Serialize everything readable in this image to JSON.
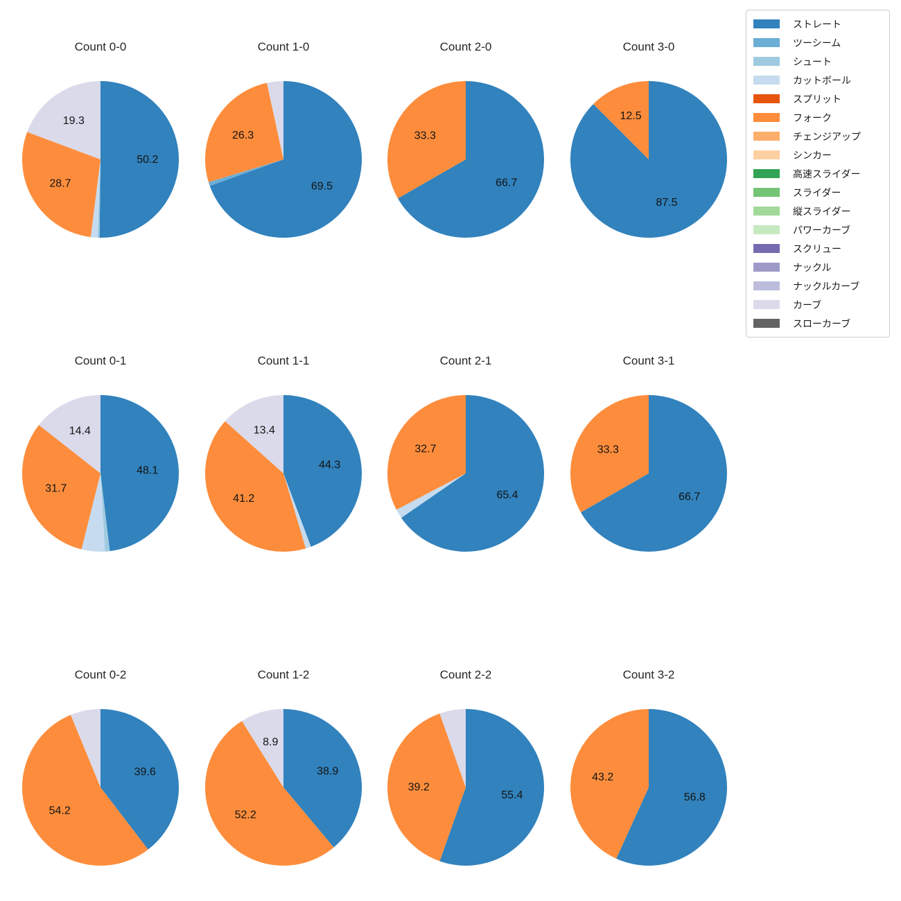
{
  "legend": {
    "items": [
      {
        "label": "ストレート",
        "color": "#3182bd"
      },
      {
        "label": "ツーシーム",
        "color": "#6baed6"
      },
      {
        "label": "シュート",
        "color": "#9ecae1"
      },
      {
        "label": "カットボール",
        "color": "#c6dbef"
      },
      {
        "label": "スプリット",
        "color": "#e6550d"
      },
      {
        "label": "フォーク",
        "color": "#fd8d3c"
      },
      {
        "label": "チェンジアップ",
        "color": "#fdae6b"
      },
      {
        "label": "シンカー",
        "color": "#fdd0a2"
      },
      {
        "label": "高速スライダー",
        "color": "#31a354"
      },
      {
        "label": "スライダー",
        "color": "#74c476"
      },
      {
        "label": "縦スライダー",
        "color": "#a1d99b"
      },
      {
        "label": "パワーカーブ",
        "color": "#c7e9c0"
      },
      {
        "label": "スクリュー",
        "color": "#756bb1"
      },
      {
        "label": "ナックル",
        "color": "#9e9ac8"
      },
      {
        "label": "ナックルカーブ",
        "color": "#bcbddc"
      },
      {
        "label": "カーブ",
        "color": "#dadaeb"
      },
      {
        "label": "スローカーブ",
        "color": "#636363"
      }
    ]
  },
  "chart_data": [
    {
      "type": "pie",
      "title": "Count 0-0",
      "start_angle_deg": 90,
      "clockwise": true,
      "slices": [
        {
          "name": "ストレート",
          "value": 50.2,
          "label": "50.2"
        },
        {
          "name": "シュート",
          "value": 0.4,
          "label": ""
        },
        {
          "name": "カットボール",
          "value": 1.4,
          "label": ""
        },
        {
          "name": "フォーク",
          "value": 28.7,
          "label": "28.7"
        },
        {
          "name": "カーブ",
          "value": 19.3,
          "label": "19.3"
        }
      ]
    },
    {
      "type": "pie",
      "title": "Count 1-0",
      "start_angle_deg": 90,
      "clockwise": true,
      "slices": [
        {
          "name": "ストレート",
          "value": 69.5,
          "label": "69.5"
        },
        {
          "name": "ツーシーム",
          "value": 0.8,
          "label": ""
        },
        {
          "name": "フォーク",
          "value": 26.3,
          "label": "26.3"
        },
        {
          "name": "カーブ",
          "value": 3.4,
          "label": ""
        }
      ]
    },
    {
      "type": "pie",
      "title": "Count 2-0",
      "start_angle_deg": 90,
      "clockwise": true,
      "slices": [
        {
          "name": "ストレート",
          "value": 66.7,
          "label": "66.7"
        },
        {
          "name": "フォーク",
          "value": 33.3,
          "label": "33.3"
        }
      ]
    },
    {
      "type": "pie",
      "title": "Count 3-0",
      "start_angle_deg": 90,
      "clockwise": true,
      "slices": [
        {
          "name": "ストレート",
          "value": 87.5,
          "label": "87.5"
        },
        {
          "name": "フォーク",
          "value": 12.5,
          "label": "12.5"
        }
      ]
    },
    {
      "type": "pie",
      "title": "Count 0-1",
      "start_angle_deg": 90,
      "clockwise": true,
      "slices": [
        {
          "name": "ストレート",
          "value": 48.1,
          "label": "48.1"
        },
        {
          "name": "シュート",
          "value": 1.0,
          "label": ""
        },
        {
          "name": "カットボール",
          "value": 4.8,
          "label": ""
        },
        {
          "name": "フォーク",
          "value": 31.7,
          "label": "31.7"
        },
        {
          "name": "カーブ",
          "value": 14.4,
          "label": "14.4"
        }
      ]
    },
    {
      "type": "pie",
      "title": "Count 1-1",
      "start_angle_deg": 90,
      "clockwise": true,
      "slices": [
        {
          "name": "ストレート",
          "value": 44.3,
          "label": "44.3"
        },
        {
          "name": "カットボール",
          "value": 1.1,
          "label": ""
        },
        {
          "name": "フォーク",
          "value": 41.2,
          "label": "41.2"
        },
        {
          "name": "カーブ",
          "value": 13.4,
          "label": "13.4"
        }
      ]
    },
    {
      "type": "pie",
      "title": "Count 2-1",
      "start_angle_deg": 90,
      "clockwise": true,
      "slices": [
        {
          "name": "ストレート",
          "value": 65.4,
          "label": "65.4"
        },
        {
          "name": "カットボール",
          "value": 1.9,
          "label": ""
        },
        {
          "name": "フォーク",
          "value": 32.7,
          "label": "32.7"
        }
      ]
    },
    {
      "type": "pie",
      "title": "Count 3-1",
      "start_angle_deg": 90,
      "clockwise": true,
      "slices": [
        {
          "name": "ストレート",
          "value": 66.7,
          "label": "66.7"
        },
        {
          "name": "フォーク",
          "value": 33.3,
          "label": "33.3"
        }
      ]
    },
    {
      "type": "pie",
      "title": "Count 0-2",
      "start_angle_deg": 90,
      "clockwise": true,
      "slices": [
        {
          "name": "ストレート",
          "value": 39.6,
          "label": "39.6"
        },
        {
          "name": "フォーク",
          "value": 54.2,
          "label": "54.2"
        },
        {
          "name": "カーブ",
          "value": 6.2,
          "label": ""
        }
      ]
    },
    {
      "type": "pie",
      "title": "Count 1-2",
      "start_angle_deg": 90,
      "clockwise": true,
      "slices": [
        {
          "name": "ストレート",
          "value": 38.9,
          "label": "38.9"
        },
        {
          "name": "フォーク",
          "value": 52.2,
          "label": "52.2"
        },
        {
          "name": "カーブ",
          "value": 8.9,
          "label": "8.9"
        }
      ]
    },
    {
      "type": "pie",
      "title": "Count 2-2",
      "start_angle_deg": 90,
      "clockwise": true,
      "slices": [
        {
          "name": "ストレート",
          "value": 55.4,
          "label": "55.4"
        },
        {
          "name": "フォーク",
          "value": 39.2,
          "label": "39.2"
        },
        {
          "name": "カーブ",
          "value": 5.4,
          "label": ""
        }
      ]
    },
    {
      "type": "pie",
      "title": "Count 3-2",
      "start_angle_deg": 90,
      "clockwise": true,
      "slices": [
        {
          "name": "ストレート",
          "value": 56.8,
          "label": "56.8"
        },
        {
          "name": "フォーク",
          "value": 43.2,
          "label": "43.2"
        }
      ]
    }
  ]
}
